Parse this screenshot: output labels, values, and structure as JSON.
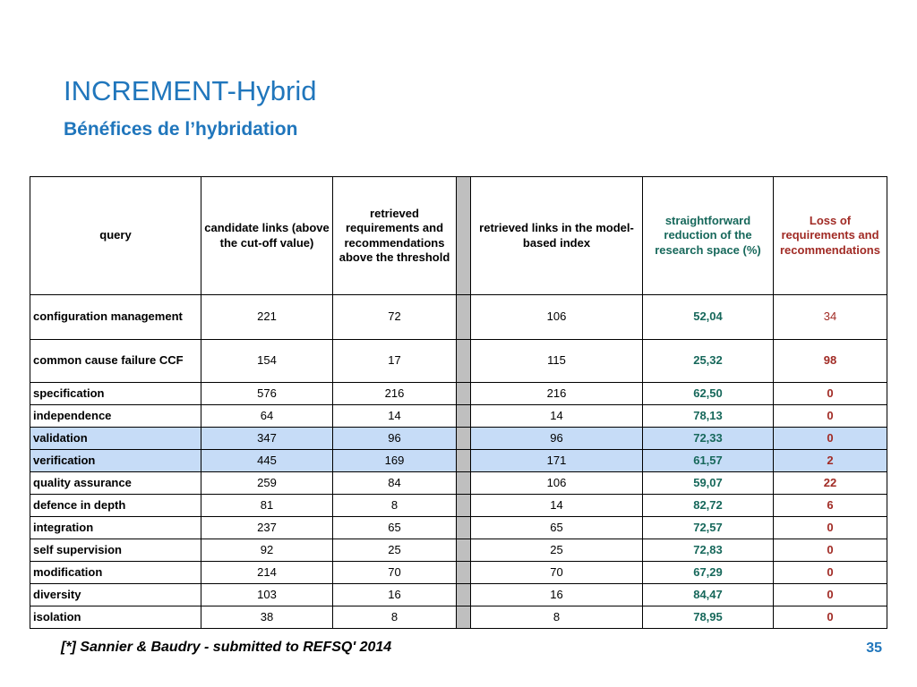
{
  "slide": {
    "title": "INCREMENT-Hybrid",
    "subtitle": "Bénéfices de l’hybridation",
    "footer": "[*] Sannier & Baudry - submitted to REFSQ' 2014",
    "page_number": "35"
  },
  "colors": {
    "title-blue": "#2076BC",
    "teal": "#17685B",
    "dark-red": "#A12B25",
    "row-highlight": "#C6DCF7",
    "stripe-gray": "#BFBFBF",
    "table-border": "#000000"
  },
  "table": {
    "columns": [
      {
        "label": "query",
        "color": "black"
      },
      {
        "label": "candidate links (above the cut-off value)",
        "color": "black"
      },
      {
        "label": "retrieved requirements and recommendations above the threshold",
        "color": "black"
      },
      {
        "label": "retrieved links in the model-based index",
        "color": "black"
      },
      {
        "label": "straightforward reduction of the research space (%)",
        "color": "teal"
      },
      {
        "label": "Loss of requirements and recommendations",
        "color": "red"
      }
    ],
    "stripe_after_column": 3,
    "rows": [
      {
        "query": "configuration management",
        "candidate": "221",
        "retrieved": "72",
        "model": "106",
        "reduction": "52,04",
        "loss": "34",
        "highlighted": false,
        "loss_bold": false
      },
      {
        "query": "common cause failure CCF",
        "candidate": "154",
        "retrieved": "17",
        "model": "115",
        "reduction": "25,32",
        "loss": "98",
        "highlighted": false,
        "loss_bold": true
      },
      {
        "query": "specification",
        "candidate": "576",
        "retrieved": "216",
        "model": "216",
        "reduction": "62,50",
        "loss": "0",
        "highlighted": false,
        "loss_bold": true
      },
      {
        "query": "independence",
        "candidate": "64",
        "retrieved": "14",
        "model": "14",
        "reduction": "78,13",
        "loss": "0",
        "highlighted": false,
        "loss_bold": true
      },
      {
        "query": "validation",
        "candidate": "347",
        "retrieved": "96",
        "model": "96",
        "reduction": "72,33",
        "loss": "0",
        "highlighted": true,
        "loss_bold": true
      },
      {
        "query": "verification",
        "candidate": "445",
        "retrieved": "169",
        "model": "171",
        "reduction": "61,57",
        "loss": "2",
        "highlighted": true,
        "loss_bold": true
      },
      {
        "query": "quality assurance",
        "candidate": "259",
        "retrieved": "84",
        "model": "106",
        "reduction": "59,07",
        "loss": "22",
        "highlighted": false,
        "loss_bold": true
      },
      {
        "query": "defence in depth",
        "candidate": "81",
        "retrieved": "8",
        "model": "14",
        "reduction": "82,72",
        "loss": "6",
        "highlighted": false,
        "loss_bold": true
      },
      {
        "query": "integration",
        "candidate": "237",
        "retrieved": "65",
        "model": "65",
        "reduction": "72,57",
        "loss": "0",
        "highlighted": false,
        "loss_bold": true
      },
      {
        "query": "self supervision",
        "candidate": "92",
        "retrieved": "25",
        "model": "25",
        "reduction": "72,83",
        "loss": "0",
        "highlighted": false,
        "loss_bold": true
      },
      {
        "query": "modification",
        "candidate": "214",
        "retrieved": "70",
        "model": "70",
        "reduction": "67,29",
        "loss": "0",
        "highlighted": false,
        "loss_bold": true
      },
      {
        "query": "diversity",
        "candidate": "103",
        "retrieved": "16",
        "model": "16",
        "reduction": "84,47",
        "loss": "0",
        "highlighted": false,
        "loss_bold": true
      },
      {
        "query": "isolation",
        "candidate": "38",
        "retrieved": "8",
        "model": "8",
        "reduction": "78,95",
        "loss": "0",
        "highlighted": false,
        "loss_bold": true
      }
    ]
  }
}
